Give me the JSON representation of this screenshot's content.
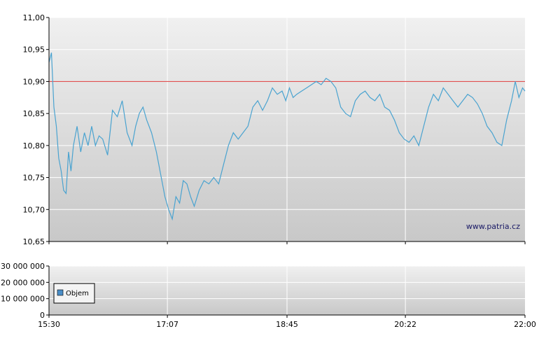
{
  "chart_data": [
    {
      "type": "line",
      "title": "",
      "xlabel": "",
      "ylabel": "",
      "x_ticks": [
        "15:30",
        "17:07",
        "18:45",
        "20:22",
        "22:00"
      ],
      "x_range": [
        "15:30",
        "22:00"
      ],
      "ylim": [
        10.65,
        11.0
      ],
      "y_ticks": [
        "10,65",
        "10,70",
        "10,75",
        "10,80",
        "10,85",
        "10,90",
        "10,95",
        "11,00"
      ],
      "reference_line": {
        "value": 10.9,
        "color": "#e05050"
      },
      "grid": true,
      "line_color": "#4aa3d0",
      "annotation": "www.patria.cz",
      "series": [
        {
          "x": [
            "15:30",
            "15:32",
            "15:34",
            "15:36",
            "15:38",
            "15:40",
            "15:42",
            "15:44",
            "15:46",
            "15:48",
            "15:50",
            "15:53",
            "15:56",
            "15:59",
            "16:02",
            "16:05",
            "16:08",
            "16:11",
            "16:14",
            "16:18",
            "16:22",
            "16:26",
            "16:30",
            "16:34",
            "16:38",
            "16:41",
            "16:44",
            "16:47",
            "16:50",
            "16:54",
            "16:58",
            "17:02",
            "17:05",
            "17:08",
            "17:11",
            "17:14",
            "17:17",
            "17:20",
            "17:23",
            "17:26",
            "17:29",
            "17:33",
            "17:37",
            "17:41",
            "17:45",
            "17:49",
            "17:53",
            "17:57",
            "18:01",
            "18:05",
            "18:09",
            "18:13",
            "18:17",
            "18:21",
            "18:25",
            "18:29",
            "18:33",
            "18:37",
            "18:41",
            "18:44",
            "18:47",
            "18:50",
            "18:53",
            "18:57",
            "19:01",
            "19:05",
            "19:09",
            "19:13",
            "19:17",
            "19:21",
            "19:25",
            "19:29",
            "19:33",
            "19:37",
            "19:41",
            "19:45",
            "19:49",
            "19:53",
            "19:57",
            "20:01",
            "20:05",
            "20:09",
            "20:13",
            "20:17",
            "20:21",
            "20:25",
            "20:29",
            "20:33",
            "20:37",
            "20:41",
            "20:45",
            "20:49",
            "20:53",
            "20:57",
            "21:01",
            "21:05",
            "21:09",
            "21:13",
            "21:17",
            "21:21",
            "21:25",
            "21:29",
            "21:33",
            "21:37",
            "21:41",
            "21:45",
            "21:49",
            "21:52",
            "21:55",
            "21:58",
            "22:00"
          ],
          "values": [
            10.93,
            10.945,
            10.86,
            10.83,
            10.78,
            10.76,
            10.73,
            10.725,
            10.79,
            10.76,
            10.8,
            10.83,
            10.79,
            10.82,
            10.8,
            10.83,
            10.8,
            10.815,
            10.81,
            10.785,
            10.855,
            10.845,
            10.87,
            10.82,
            10.8,
            10.83,
            10.85,
            10.86,
            10.84,
            10.82,
            10.79,
            10.75,
            10.72,
            10.7,
            10.685,
            10.72,
            10.71,
            10.745,
            10.74,
            10.72,
            10.705,
            10.73,
            10.745,
            10.74,
            10.75,
            10.74,
            10.77,
            10.8,
            10.82,
            10.81,
            10.82,
            10.83,
            10.86,
            10.87,
            10.855,
            10.87,
            10.89,
            10.88,
            10.885,
            10.87,
            10.89,
            10.875,
            10.88,
            10.885,
            10.89,
            10.895,
            10.9,
            10.895,
            10.905,
            10.9,
            10.89,
            10.86,
            10.85,
            10.845,
            10.87,
            10.88,
            10.885,
            10.875,
            10.87,
            10.88,
            10.86,
            10.855,
            10.84,
            10.82,
            10.81,
            10.805,
            10.815,
            10.8,
            10.83,
            10.86,
            10.88,
            10.87,
            10.89,
            10.88,
            10.87,
            10.86,
            10.87,
            10.88,
            10.875,
            10.865,
            10.85,
            10.83,
            10.82,
            10.805,
            10.8,
            10.84,
            10.87,
            10.9,
            10.875,
            10.89,
            10.885
          ]
        }
      ]
    },
    {
      "type": "bar",
      "title": "",
      "xlabel": "",
      "ylabel": "",
      "ylim": [
        0,
        30000000
      ],
      "y_ticks": [
        "0",
        "10 000 000",
        "20 000 000",
        "30 000 000"
      ],
      "x_ticks": [
        "15:30",
        "17:07",
        "18:45",
        "20:22",
        "22:00"
      ],
      "grid": true,
      "legend": "bottom-left",
      "series": [
        {
          "name": "Objem",
          "color": "#4a8ec8",
          "values": []
        }
      ]
    }
  ]
}
